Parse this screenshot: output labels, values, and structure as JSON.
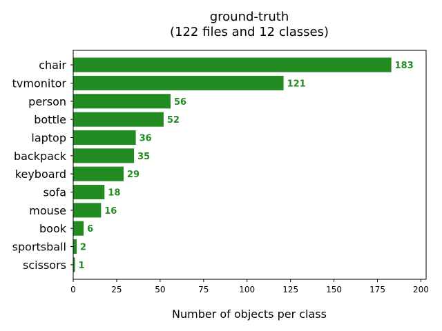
{
  "chart_data": {
    "type": "bar",
    "orientation": "horizontal",
    "title": "ground-truth",
    "subtitle": "(122 files and 12 classes)",
    "xlabel": "Number of objects per class",
    "ylabel": "",
    "xlim": [
      0,
      203
    ],
    "xticks": [
      0,
      25,
      50,
      75,
      100,
      125,
      150,
      175,
      200
    ],
    "grid": false,
    "bar_color": "#228b22",
    "label_color": "#228b22",
    "categories": [
      "chair",
      "tvmonitor",
      "person",
      "bottle",
      "laptop",
      "backpack",
      "keyboard",
      "sofa",
      "mouse",
      "book",
      "sportsball",
      "scissors"
    ],
    "values": [
      183,
      121,
      56,
      52,
      36,
      35,
      29,
      18,
      16,
      6,
      2,
      1
    ]
  }
}
